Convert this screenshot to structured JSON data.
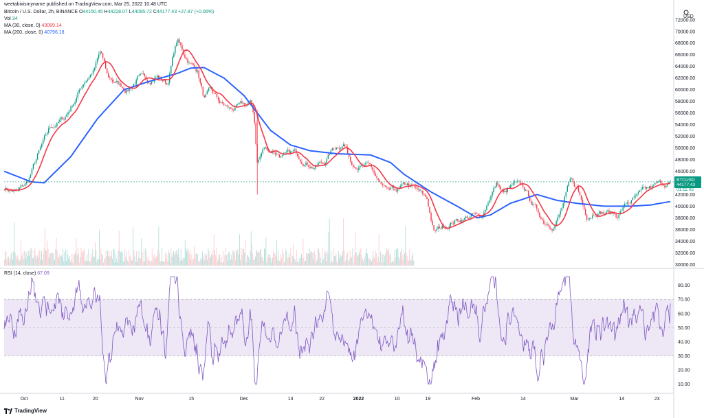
{
  "header": {
    "publisher": "weetabixismyname published on TradingView.com, Mar 25, 2022 10:48 UTC",
    "symbol_line": "Bitcoin / U.S. Dollar, 2h, BINANCE",
    "o_label": "O",
    "o_value": "44150.45",
    "h_label": "H",
    "h_value": "44228.07",
    "l_label": "L",
    "l_value": "44095.72",
    "c_label": "C",
    "c_value": "44177.43",
    "change": "+27.87 (+0.06%)",
    "vol_label": "Vol",
    "vol_value": "34",
    "ma30_label": "MA (30, close, 0)",
    "ma30_value": "43089.14",
    "ma200_label": "MA (200, close, 0)",
    "ma200_value": "40796.18",
    "rsi_label": "RSI (14, close)",
    "rsi_value": "67.09"
  },
  "price_axis": {
    "currency": "USD",
    "symbol_tag": "BTCUSD",
    "last_price": "44177.43",
    "countdown": "01:11:03"
  },
  "footer": {
    "brand": "TradingView"
  },
  "colors": {
    "candle_up": "#089981",
    "candle_down": "#f23645",
    "ma30": "#f23645",
    "ma200": "#2962ff",
    "rsi": "#7e57c2",
    "rsi_band": "#ede7f6"
  },
  "chart_data": [
    {
      "type": "candlestick",
      "title": "Bitcoin / U.S. Dollar, 2h, BINANCE",
      "x_ticks": [
        "Oct",
        "11",
        "20",
        "Nov",
        "15",
        "Dec",
        "13",
        "22",
        "2022",
        "10",
        "19",
        "Feb",
        "14",
        "Mar",
        "14",
        "23"
      ],
      "y_ticks": [
        "72000.00",
        "70000.00",
        "68000.00",
        "66000.00",
        "64000.00",
        "62000.00",
        "60000.00",
        "58000.00",
        "56000.00",
        "54000.00",
        "52000.00",
        "50000.00",
        "48000.00",
        "46000.00",
        "44000.00",
        "42000.00",
        "40000.00",
        "38000.00",
        "36000.00",
        "34000.00",
        "32000.00",
        "30000.00"
      ],
      "ylim": [
        29800,
        72800
      ],
      "close_path": [
        [
          0.0,
          43200
        ],
        [
          0.02,
          42400
        ],
        [
          0.035,
          44000
        ],
        [
          0.05,
          48500
        ],
        [
          0.07,
          53500
        ],
        [
          0.09,
          55000
        ],
        [
          0.105,
          58000
        ],
        [
          0.12,
          61500
        ],
        [
          0.135,
          63500
        ],
        [
          0.145,
          66500
        ],
        [
          0.155,
          62000
        ],
        [
          0.17,
          61000
        ],
        [
          0.185,
          60000
        ],
        [
          0.2,
          62000
        ],
        [
          0.215,
          61500
        ],
        [
          0.23,
          62500
        ],
        [
          0.245,
          61000
        ],
        [
          0.255,
          66500
        ],
        [
          0.26,
          68500
        ],
        [
          0.27,
          66000
        ],
        [
          0.28,
          64500
        ],
        [
          0.29,
          63500
        ],
        [
          0.3,
          58500
        ],
        [
          0.31,
          59500
        ],
        [
          0.325,
          57500
        ],
        [
          0.34,
          56500
        ],
        [
          0.355,
          57000
        ],
        [
          0.37,
          57500
        ],
        [
          0.375,
          55500
        ],
        [
          0.38,
          47500
        ],
        [
          0.39,
          50000
        ],
        [
          0.405,
          49500
        ],
        [
          0.42,
          48500
        ],
        [
          0.435,
          49000
        ],
        [
          0.45,
          48000
        ],
        [
          0.465,
          47000
        ],
        [
          0.48,
          47500
        ],
        [
          0.495,
          50000
        ],
        [
          0.51,
          51000
        ],
        [
          0.52,
          48000
        ],
        [
          0.535,
          47000
        ],
        [
          0.55,
          46500
        ],
        [
          0.565,
          43500
        ],
        [
          0.575,
          42000
        ],
        [
          0.59,
          42500
        ],
        [
          0.605,
          43500
        ],
        [
          0.62,
          42500
        ],
        [
          0.635,
          41000
        ],
        [
          0.645,
          35500
        ],
        [
          0.66,
          36500
        ],
        [
          0.675,
          37500
        ],
        [
          0.69,
          38000
        ],
        [
          0.705,
          38500
        ],
        [
          0.715,
          37500
        ],
        [
          0.73,
          42000
        ],
        [
          0.74,
          44000
        ],
        [
          0.75,
          42000
        ],
        [
          0.765,
          43500
        ],
        [
          0.78,
          43000
        ],
        [
          0.795,
          40000
        ],
        [
          0.81,
          37500
        ],
        [
          0.825,
          37000
        ],
        [
          0.835,
          39000
        ],
        [
          0.85,
          44000
        ],
        [
          0.86,
          43000
        ],
        [
          0.875,
          38500
        ],
        [
          0.89,
          39500
        ],
        [
          0.905,
          39000
        ],
        [
          0.92,
          38500
        ],
        [
          0.935,
          40500
        ],
        [
          0.95,
          41500
        ],
        [
          0.965,
          42500
        ],
        [
          0.98,
          43500
        ],
        [
          1.0,
          44177
        ]
      ],
      "series": [
        {
          "name": "MA (30, close, 0)",
          "last": 43089.14
        },
        {
          "name": "MA (200, close, 0)",
          "last": 40796.18,
          "path": [
            [
              0.0,
              46000
            ],
            [
              0.04,
              44200
            ],
            [
              0.06,
              44000
            ],
            [
              0.1,
              48500
            ],
            [
              0.14,
              55000
            ],
            [
              0.18,
              60000
            ],
            [
              0.22,
              61500
            ],
            [
              0.26,
              62800
            ],
            [
              0.28,
              63700
            ],
            [
              0.3,
              63800
            ],
            [
              0.33,
              62000
            ],
            [
              0.36,
              59000
            ],
            [
              0.38,
              56000
            ],
            [
              0.4,
              53000
            ],
            [
              0.43,
              50500
            ],
            [
              0.46,
              49500
            ],
            [
              0.5,
              49000
            ],
            [
              0.55,
              48800
            ],
            [
              0.58,
              47500
            ],
            [
              0.6,
              45500
            ],
            [
              0.64,
              42500
            ],
            [
              0.68,
              40000
            ],
            [
              0.71,
              38000
            ],
            [
              0.73,
              38500
            ],
            [
              0.76,
              40500
            ],
            [
              0.8,
              42000
            ],
            [
              0.83,
              41000
            ],
            [
              0.86,
              40500
            ],
            [
              0.9,
              40000
            ],
            [
              0.94,
              40000
            ],
            [
              0.97,
              40200
            ],
            [
              1.0,
              40796
            ]
          ]
        }
      ],
      "volume_peaks": [
        40,
        35,
        45,
        50,
        38,
        42,
        36,
        55,
        30,
        44,
        40,
        48,
        35,
        33,
        38,
        42,
        36,
        40,
        35,
        45,
        38,
        40,
        36,
        44
      ]
    },
    {
      "type": "line",
      "title": "RSI (14, close)",
      "y_ticks": [
        "80.00",
        "70.00",
        "60.00",
        "50.00",
        "40.00",
        "30.00",
        "20.00",
        "10.00"
      ],
      "ylim": [
        5,
        90
      ],
      "band": [
        30,
        70
      ],
      "last": 67.09
    }
  ]
}
